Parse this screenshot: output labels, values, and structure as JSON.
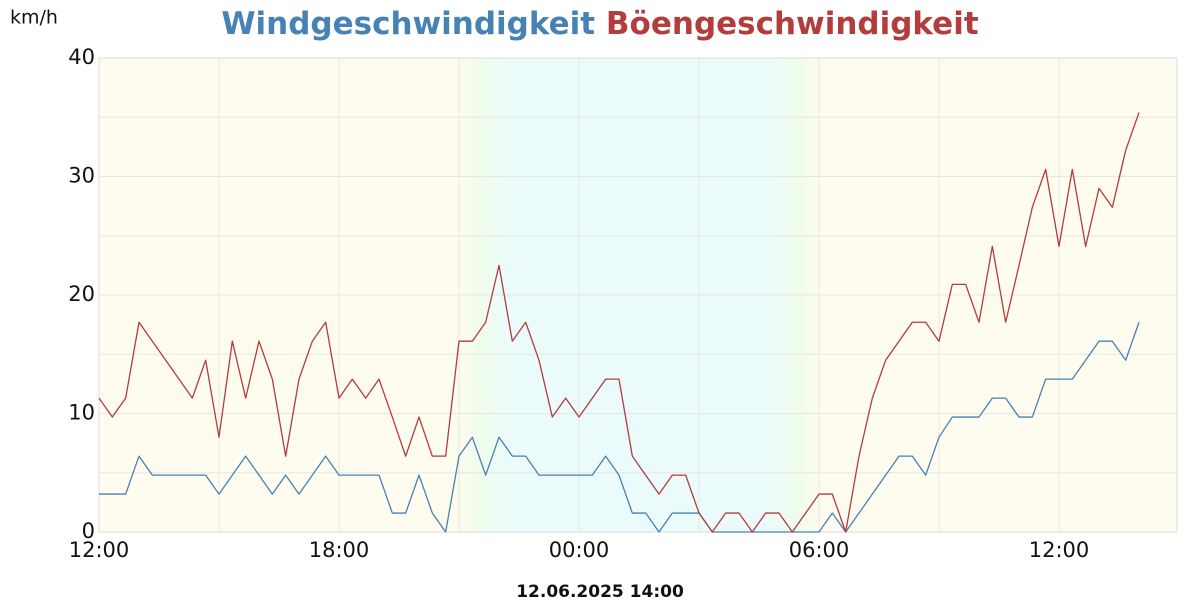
{
  "chart_data": {
    "type": "line",
    "y_label": "km/h",
    "timestamp": "12.06.2025 14:00",
    "x": [
      0,
      20,
      40,
      60,
      80,
      100,
      120,
      140,
      160,
      180,
      200,
      220,
      240,
      260,
      280,
      300,
      320,
      340,
      360,
      380,
      400,
      420,
      440,
      460,
      480,
      500,
      520,
      540,
      560,
      580,
      600,
      620,
      640,
      660,
      680,
      700,
      720,
      740,
      760,
      780,
      800,
      820,
      840,
      860,
      880,
      900,
      920,
      940,
      960,
      980,
      1000,
      1020,
      1040,
      1060,
      1080,
      1100,
      1120,
      1140,
      1160,
      1180,
      1200,
      1220,
      1240,
      1260,
      1280,
      1300,
      1320,
      1340,
      1360,
      1380,
      1400,
      1420,
      1440,
      1460,
      1480,
      1500,
      1520,
      1540,
      1560
    ],
    "series": [
      {
        "name": "Windgeschwindigkeit",
        "color": "#4682b4",
        "values": [
          3.2,
          3.2,
          3.2,
          6.4,
          4.8,
          4.8,
          4.8,
          4.8,
          4.8,
          3.2,
          4.8,
          6.4,
          4.8,
          3.2,
          4.8,
          3.2,
          4.8,
          6.4,
          4.8,
          4.8,
          4.8,
          4.8,
          1.6,
          1.6,
          4.8,
          1.6,
          0,
          6.4,
          8.0,
          4.8,
          8.0,
          6.4,
          6.4,
          4.8,
          4.8,
          4.8,
          4.8,
          4.8,
          6.4,
          4.8,
          1.6,
          1.6,
          0,
          1.6,
          1.6,
          1.6,
          0,
          0,
          0,
          0,
          0,
          0,
          0,
          0,
          0,
          1.6,
          0,
          1.6,
          3.2,
          4.8,
          6.4,
          6.4,
          4.8,
          8.0,
          9.7,
          9.7,
          9.7,
          11.3,
          11.3,
          9.7,
          9.7,
          12.9,
          12.9,
          12.9,
          14.5,
          16.1,
          16.1,
          14.5,
          17.7
        ]
      },
      {
        "name": "Böengeschwindigkeit",
        "color": "#b33c3c",
        "values": [
          11.3,
          9.7,
          11.3,
          17.7,
          16.1,
          14.5,
          12.9,
          11.3,
          14.5,
          8.0,
          16.1,
          11.3,
          16.1,
          12.9,
          6.4,
          12.9,
          16.1,
          17.7,
          11.3,
          12.9,
          11.3,
          12.9,
          9.7,
          6.4,
          9.7,
          6.4,
          6.4,
          16.1,
          16.1,
          17.7,
          22.5,
          16.1,
          17.7,
          14.5,
          9.7,
          11.3,
          9.7,
          11.3,
          12.9,
          12.9,
          6.4,
          4.8,
          3.2,
          4.8,
          4.8,
          1.6,
          0,
          1.6,
          1.6,
          0,
          1.6,
          1.6,
          0,
          1.6,
          3.2,
          3.2,
          0,
          6.4,
          11.3,
          14.5,
          16.1,
          17.7,
          17.7,
          16.1,
          20.9,
          20.9,
          17.7,
          24.1,
          17.7,
          22.5,
          27.4,
          30.6,
          24.1,
          30.6,
          24.1,
          29.0,
          27.4,
          32.2,
          35.4
        ]
      }
    ],
    "xlim": [
      0,
      1620
    ],
    "xticks": [
      {
        "value": 0,
        "label": "12:00"
      },
      {
        "value": 360,
        "label": "18:00"
      },
      {
        "value": 720,
        "label": "00:00"
      },
      {
        "value": 1080,
        "label": "06:00"
      },
      {
        "value": 1440,
        "label": "12:00"
      }
    ],
    "x_minor_grid": [
      180,
      540,
      900,
      1260
    ],
    "ylim": [
      0,
      40
    ],
    "yticks": [
      0,
      10,
      20,
      30,
      40
    ],
    "y_minor_grid": [
      5,
      15,
      25,
      35
    ],
    "grid": true
  }
}
